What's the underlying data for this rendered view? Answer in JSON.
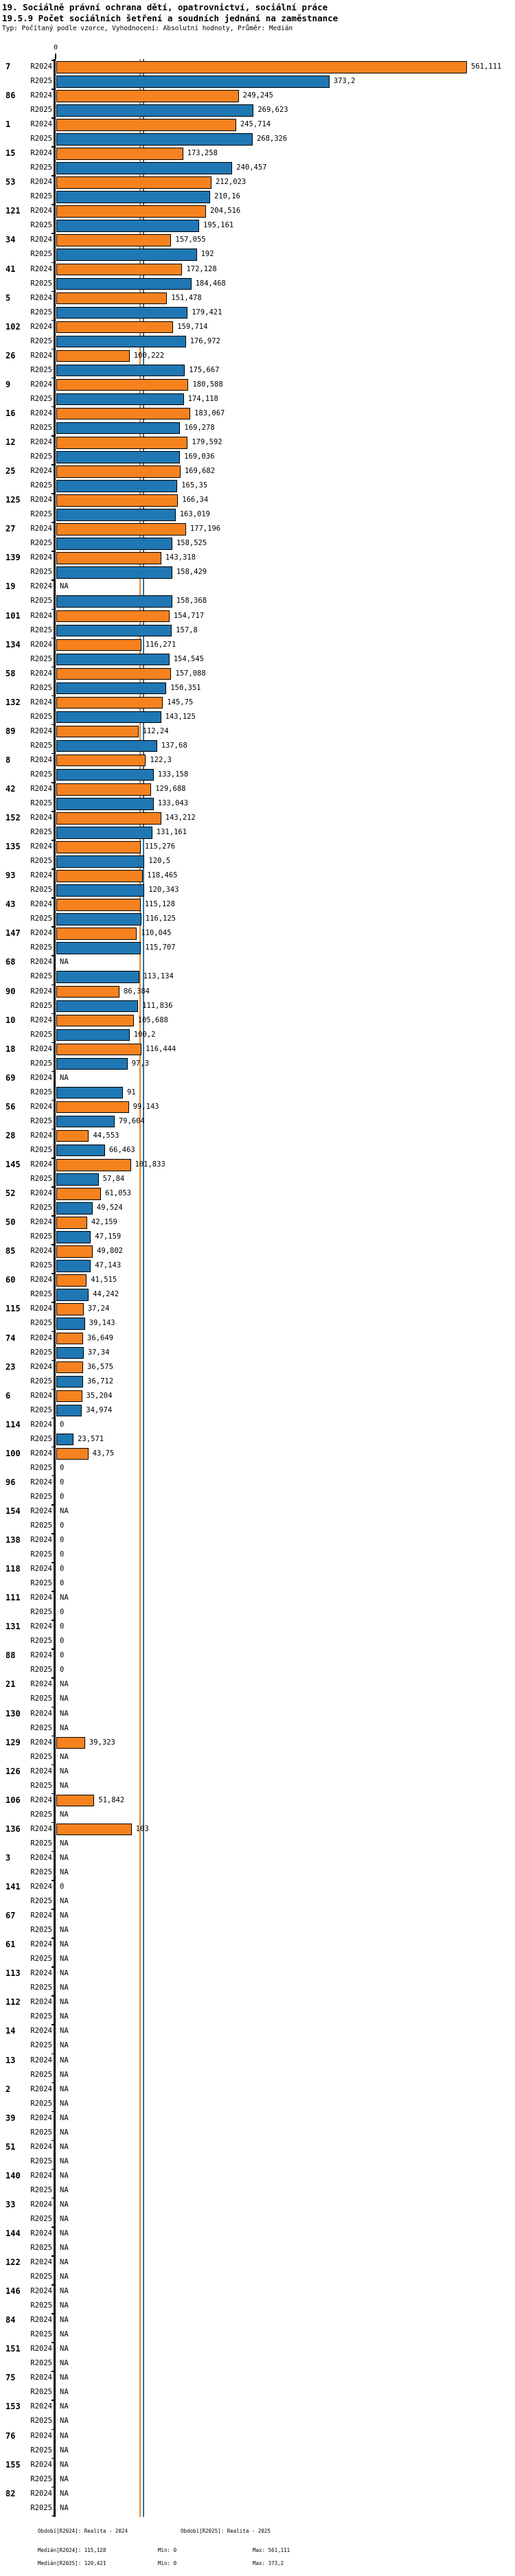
{
  "header": {
    "title": "19. Sociálně právní ochrana dětí, opatrovnictví, sociální práce",
    "subtitle": "19.5.9 Počet sociálních šetření a soudních jednání na zaměstnance",
    "meta": "Typ: Počítaný podle vzorce, Vyhodnocení: Absolutní hodnoty, Průměr: Medián"
  },
  "axis": {
    "zero_label": "0"
  },
  "colors": {
    "bar_r2024": "#F6821F",
    "bar_r2025": "#1F77B4",
    "bar_border": "#000000",
    "median_r2024": "#F6821F",
    "median_r2025": "#1F77B4"
  },
  "medians": {
    "r2024": 115.128,
    "r2025": 120.421
  },
  "na_label": "NA",
  "chart_data": {
    "type": "bar",
    "orientation": "horizontal",
    "title": "19.5.9 Počet sociálních šetření a soudních jednání na zaměstnance",
    "xlabel": "",
    "ylabel": "",
    "xlim": [
      0,
      600
    ],
    "grid": false,
    "legend_position": "bottom",
    "decimal_separator": ",",
    "median_lines": {
      "R2024": 115.128,
      "R2025": 120.421
    },
    "categories": [
      "7",
      "86",
      "1",
      "15",
      "53",
      "121",
      "34",
      "41",
      "5",
      "102",
      "26",
      "9",
      "16",
      "12",
      "25",
      "125",
      "27",
      "139",
      "19",
      "101",
      "134",
      "58",
      "132",
      "89",
      "8",
      "42",
      "152",
      "135",
      "93",
      "43",
      "147",
      "68",
      "90",
      "10",
      "18",
      "69",
      "56",
      "28",
      "145",
      "52",
      "50",
      "85",
      "60",
      "115",
      "74",
      "23",
      "6",
      "114",
      "100",
      "96",
      "154",
      "138",
      "118",
      "111",
      "131",
      "88",
      "21",
      "130",
      "129",
      "126",
      "106",
      "136",
      "3",
      "141",
      "67",
      "61",
      "113",
      "112",
      "14",
      "13",
      "2",
      "39",
      "51",
      "140",
      "33",
      "144",
      "122",
      "146",
      "84",
      "151",
      "75",
      "153",
      "76",
      "155",
      "82"
    ],
    "series": [
      {
        "name": "R2024",
        "values": [
          561.111,
          249.245,
          245.714,
          173.258,
          212.023,
          204.516,
          157.055,
          172.128,
          151.478,
          159.714,
          100.222,
          180.588,
          183.067,
          179.592,
          169.682,
          166.34,
          177.196,
          143.318,
          null,
          154.717,
          116.271,
          157.088,
          145.75,
          112.24,
          122.3,
          129.688,
          143.212,
          115.276,
          118.465,
          115.128,
          110.045,
          null,
          86.384,
          105.688,
          116.444,
          null,
          99.143,
          44.553,
          101.833,
          61.053,
          42.159,
          49.802,
          41.515,
          37.24,
          36.649,
          36.575,
          35.204,
          0,
          43.75,
          0,
          null,
          0,
          0,
          null,
          0,
          0,
          null,
          null,
          39.323,
          null,
          51.842,
          103,
          null,
          0,
          null,
          null,
          null,
          null,
          null,
          null,
          null,
          null,
          null,
          null,
          null,
          null,
          null,
          null,
          null,
          null,
          null,
          null,
          null,
          null,
          null
        ]
      },
      {
        "name": "R2025",
        "values": [
          373.2,
          269.623,
          268.326,
          240.457,
          210.16,
          195.161,
          192,
          184.468,
          179.421,
          176.972,
          175.667,
          174.118,
          169.278,
          169.036,
          165.35,
          163.019,
          158.525,
          158.429,
          158.368,
          157.8,
          154.545,
          150.351,
          143.125,
          137.68,
          133.158,
          133.043,
          131.161,
          120.5,
          120.343,
          116.125,
          115.707,
          113.134,
          111.836,
          100.2,
          97.3,
          91,
          79.604,
          66.463,
          57.84,
          49.524,
          47.159,
          47.143,
          44.242,
          39.143,
          37.34,
          36.712,
          34.974,
          23.571,
          0,
          0,
          0,
          0,
          0,
          0,
          0,
          0,
          null,
          null,
          null,
          null,
          null,
          null,
          null,
          null,
          null,
          null,
          null,
          null,
          null,
          null,
          null,
          null,
          null,
          null,
          null,
          null,
          null,
          null,
          null,
          null,
          null,
          null,
          null,
          null,
          null
        ]
      }
    ]
  },
  "footer": {
    "period_r2024": "Období[R2024]: Realita - 2024",
    "period_r2025": "Období[R2025]: Realita - 2025",
    "median_r2024": "Medián[R2024]: 115,128",
    "min_r2024": "Min: 0",
    "max_r2024": "Max: 561,111",
    "median_r2025": "Medián[R2025]: 120,421",
    "min_r2025": "Min: 0",
    "max_r2025": "Max: 373,2"
  }
}
